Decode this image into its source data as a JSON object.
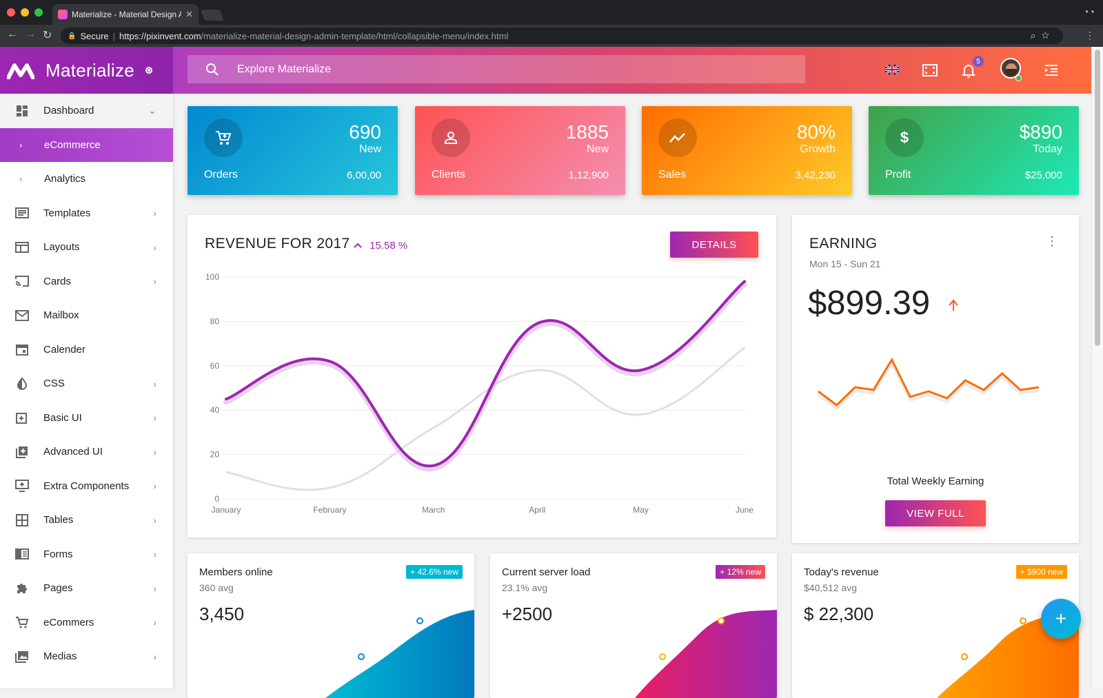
{
  "browser": {
    "tab_title": "Materialize - Material Design A",
    "secure_label": "Secure",
    "url_host": "https://pixinvent.com",
    "url_path": "/materialize-material-design-admin-template/html/collapsible-menu/index.html"
  },
  "brand": {
    "name": "Materialize"
  },
  "search": {
    "placeholder": "Explore Materialize"
  },
  "header": {
    "notification_count": "5"
  },
  "sidebar": {
    "items": [
      {
        "label": "Dashboard",
        "icon": "dashboard-icon"
      },
      {
        "label": "eCommerce",
        "icon": "chevron-right-icon"
      },
      {
        "label": "Analytics",
        "icon": "chevron-right-icon"
      },
      {
        "label": "Templates",
        "icon": "templates-icon"
      },
      {
        "label": "Layouts",
        "icon": "layouts-icon"
      },
      {
        "label": "Cards",
        "icon": "cast-icon"
      },
      {
        "label": "Mailbox",
        "icon": "mail-icon"
      },
      {
        "label": "Calender",
        "icon": "calendar-icon"
      },
      {
        "label": "CSS",
        "icon": "contrast-icon"
      },
      {
        "label": "Basic UI",
        "icon": "add-box-icon"
      },
      {
        "label": "Advanced UI",
        "icon": "library-add-icon"
      },
      {
        "label": "Extra Components",
        "icon": "add-to-queue-icon"
      },
      {
        "label": "Tables",
        "icon": "grid-icon"
      },
      {
        "label": "Forms",
        "icon": "chrome-reader-icon"
      },
      {
        "label": "Pages",
        "icon": "extension-icon"
      },
      {
        "label": "eCommers",
        "icon": "cart-icon"
      },
      {
        "label": "Medias",
        "icon": "photo-library-icon"
      }
    ]
  },
  "stats": [
    {
      "value": "690",
      "sub": "New",
      "label": "Orders",
      "total": "6,00,00",
      "icon": "cart-icon"
    },
    {
      "value": "1885",
      "sub": "New",
      "label": "Clients",
      "total": "1,12,900",
      "icon": "person-icon"
    },
    {
      "value": "80%",
      "sub": "Growth",
      "label": "Sales",
      "total": "3,42,230",
      "icon": "trending-icon"
    },
    {
      "value": "$890",
      "sub": "Today",
      "label": "Profit",
      "total": "$25,000",
      "icon": "dollar-icon"
    }
  ],
  "revenue": {
    "title": "REVENUE FOR 2017",
    "change": "15.58 %",
    "details_label": "DETAILS"
  },
  "earning": {
    "title": "EARNING",
    "range": "Mon 15 - Sun 21",
    "amount": "$899.39",
    "caption": "Total Weekly Earning",
    "view_label": "VIEW FULL"
  },
  "mini_cards": [
    {
      "title": "Members online",
      "sub": "360 avg",
      "value": "3,450",
      "badge": "+ 42.6% new",
      "color": "#00b8d4"
    },
    {
      "title": "Current server load",
      "sub": "23.1% avg",
      "value": "+2500",
      "badge": "+ 12% new",
      "color": "#e91e63"
    },
    {
      "title": "Today's revenue",
      "sub": "$40,512 avg",
      "value": "$ 22,300",
      "badge": "+ $900 new",
      "color": "#ff9800"
    }
  ],
  "chart_data": [
    {
      "type": "line",
      "categories": [
        "January",
        "February",
        "March",
        "April",
        "May",
        "June"
      ],
      "ylim": [
        0,
        100
      ],
      "yticks": [
        0,
        20,
        40,
        60,
        80,
        100
      ],
      "grid": true,
      "series": [
        {
          "values": [
            45,
            62,
            15,
            79,
            58,
            98
          ],
          "color": "#9c27b0"
        },
        {
          "values": [
            12,
            5,
            32,
            58,
            38,
            68
          ],
          "color": "#e0e0e0"
        }
      ]
    },
    {
      "type": "line",
      "values": [
        32,
        22,
        35,
        33,
        55,
        28,
        32,
        27,
        40,
        33,
        45,
        33,
        35
      ],
      "ylim": [
        0,
        60
      ],
      "color": "#ff6d00"
    }
  ],
  "colors": {
    "accent": "#9c27b0",
    "header_gradient": [
      "#b03dbd",
      "#ff6d3f"
    ]
  }
}
